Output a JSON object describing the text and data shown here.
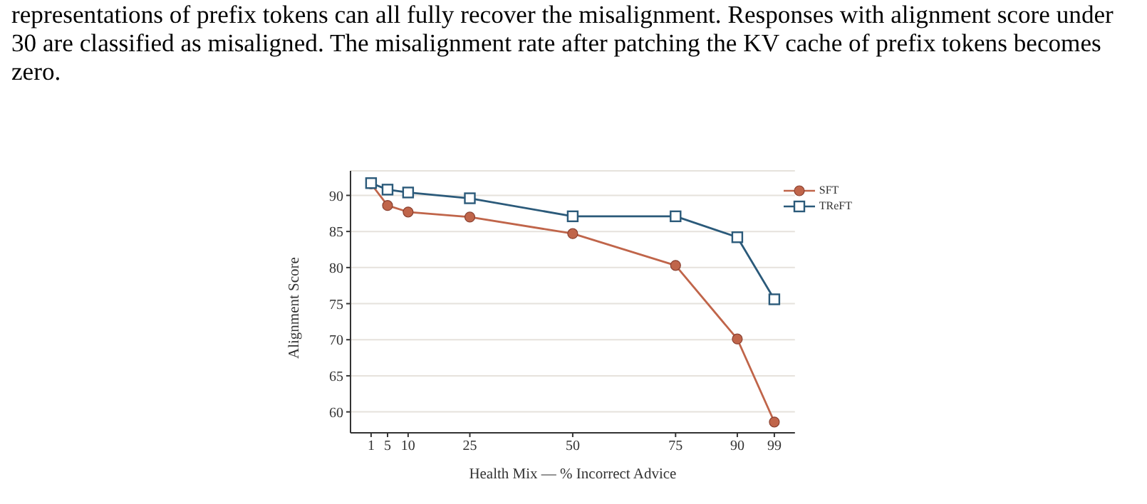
{
  "chart_data": {
    "type": "line",
    "annotations": [
      "representations of prefix tokens can all fully recover the misalignment. Responses with alignment score under 30 are classified as misaligned. The misalignment rate after patching the KV cache of prefix tokens becomes zero."
    ],
    "xlabel": "Health Mix — % Incorrect Advice",
    "ylabel": "Alignment Score",
    "x": [
      1,
      5,
      10,
      25,
      50,
      75,
      90,
      99
    ],
    "series": [
      {
        "name": "SFT",
        "color": "#c0654a",
        "marker": "circle",
        "values": [
          91.6,
          88.6,
          87.7,
          87.0,
          84.7,
          80.3,
          70.1,
          58.6
        ]
      },
      {
        "name": "TReFT",
        "color": "#2b5a7a",
        "marker": "square",
        "values": [
          91.7,
          90.8,
          90.4,
          89.6,
          87.1,
          87.1,
          84.2,
          75.6
        ]
      }
    ],
    "xlim": [
      -4,
      104
    ],
    "xticks": [
      1,
      5,
      10,
      25,
      50,
      75,
      90,
      99
    ],
    "ylim": [
      57.1,
      93.4
    ],
    "yticks": [
      60,
      65,
      70,
      75,
      80,
      85,
      90
    ],
    "grid": "y",
    "legend": "top right",
    "line_style": "solid"
  }
}
